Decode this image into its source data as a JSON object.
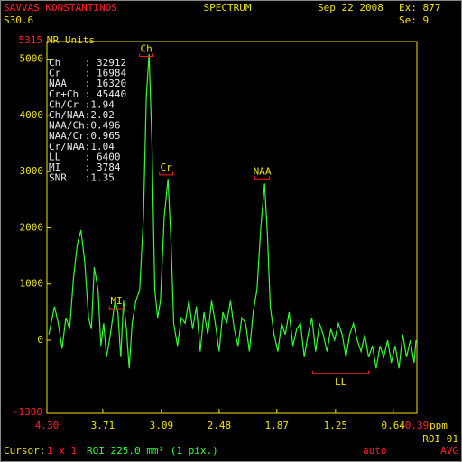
{
  "header": {
    "patient": "SAVVAS KONSTANTINOS",
    "series": "S30.6",
    "title": "SPECTRUM",
    "date": "Sep 22 2008",
    "ex": "Ex: 877",
    "se": "Se: 9"
  },
  "metrics": [
    "Ch    : 32912",
    "Cr    : 16984",
    "NAA   : 16320",
    "Cr+Ch : 45440",
    "Ch/Cr :1.94",
    "Ch/NAA:2.02",
    "NAA/Ch:0.496",
    "NAA/Cr:0.965",
    "Cr/NAA:1.04",
    "LL    : 6400",
    "MI    : 3784",
    "SNR   :1.35"
  ],
  "footer": {
    "cursor": "Cursor:",
    "cursor_size": "1 x 1",
    "roi": "ROI 225.0 mm² (1 pix.)",
    "mode": "auto",
    "avg": "AVG",
    "roi_id": "ROI 01"
  },
  "chart_data": {
    "type": "line",
    "y_label": "MR Units",
    "x_label": "ppm",
    "xlim": [
      4.3,
      0.39
    ],
    "xlim_labels": [
      "4.30",
      "0.39"
    ],
    "xticks": [
      3.71,
      3.09,
      2.48,
      1.87,
      1.25,
      0.64
    ],
    "ylim": [
      -1300,
      5315
    ],
    "yticks": [
      0,
      1000,
      2000,
      3000,
      4000,
      5000
    ],
    "color": "#30ff30",
    "x": [
      4.28,
      4.22,
      4.18,
      4.14,
      4.1,
      4.06,
      4.02,
      3.98,
      3.94,
      3.9,
      3.86,
      3.83,
      3.8,
      3.76,
      3.73,
      3.7,
      3.67,
      3.63,
      3.58,
      3.55,
      3.52,
      3.49,
      3.46,
      3.43,
      3.4,
      3.36,
      3.32,
      3.28,
      3.25,
      3.22,
      3.19,
      3.16,
      3.13,
      3.1,
      3.06,
      3.02,
      2.99,
      2.96,
      2.92,
      2.88,
      2.84,
      2.8,
      2.76,
      2.72,
      2.68,
      2.64,
      2.6,
      2.56,
      2.52,
      2.48,
      2.44,
      2.4,
      2.36,
      2.32,
      2.28,
      2.24,
      2.2,
      2.16,
      2.12,
      2.08,
      2.04,
      2.0,
      1.97,
      1.94,
      1.9,
      1.86,
      1.82,
      1.78,
      1.74,
      1.7,
      1.66,
      1.62,
      1.58,
      1.54,
      1.5,
      1.46,
      1.42,
      1.38,
      1.34,
      1.3,
      1.26,
      1.22,
      1.18,
      1.14,
      1.1,
      1.06,
      1.02,
      0.98,
      0.94,
      0.9,
      0.86,
      0.82,
      0.78,
      0.74,
      0.7,
      0.66,
      0.62,
      0.58,
      0.54,
      0.5,
      0.46,
      0.42,
      0.4
    ],
    "values": [
      100,
      600,
      300,
      -150,
      400,
      200,
      1100,
      1700,
      1960,
      1400,
      400,
      200,
      1300,
      900,
      -100,
      300,
      -300,
      100,
      700,
      500,
      -300,
      700,
      200,
      -500,
      300,
      700,
      900,
      2200,
      4300,
      5090,
      3500,
      900,
      400,
      700,
      2200,
      2870,
      1800,
      300,
      -100,
      400,
      300,
      700,
      200,
      600,
      -200,
      500,
      100,
      700,
      300,
      -200,
      500,
      300,
      700,
      200,
      -100,
      400,
      300,
      -200,
      500,
      900,
      2000,
      2790,
      1900,
      600,
      100,
      -200,
      300,
      100,
      500,
      -100,
      200,
      300,
      -300,
      100,
      400,
      -200,
      300,
      100,
      -200,
      200,
      0,
      300,
      100,
      -300,
      100,
      300,
      0,
      -200,
      100,
      -300,
      -100,
      -500,
      -100,
      -300,
      0,
      -400,
      -100,
      -500,
      100,
      -300,
      0,
      -400,
      0
    ],
    "annotations": [
      {
        "text": "Ch",
        "x": [
          3.32,
          3.18
        ],
        "y": 5050
      },
      {
        "text": "Cr",
        "x": [
          3.11,
          2.97
        ],
        "y": 2940
      },
      {
        "text": "NAA",
        "x": [
          2.1,
          1.95
        ],
        "y": 2870
      },
      {
        "text": "MI",
        "x": [
          3.64,
          3.49
        ],
        "y": 560
      },
      {
        "text": "LL",
        "x": [
          1.49,
          0.9
        ],
        "y": -590
      }
    ]
  }
}
